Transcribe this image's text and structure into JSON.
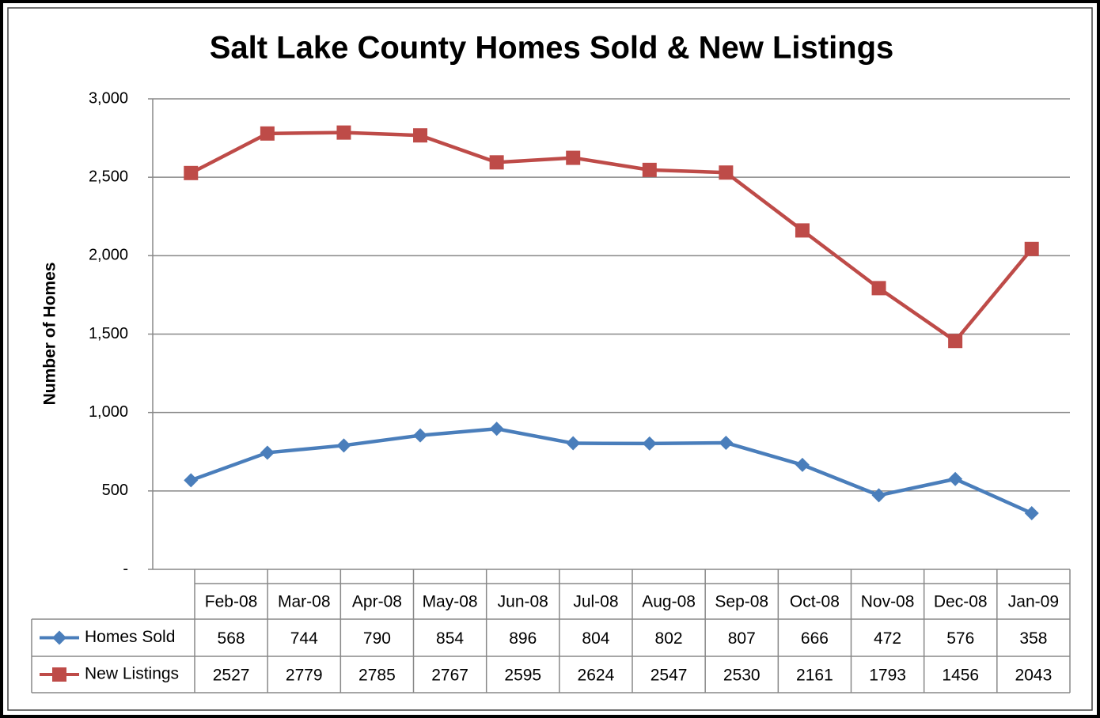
{
  "chart_data": {
    "type": "line",
    "title": "Salt Lake County Homes Sold & New Listings",
    "y_label": "Number of Homes",
    "categories": [
      "Feb-08",
      "Mar-08",
      "Apr-08",
      "May-08",
      "Jun-08",
      "Jul-08",
      "Aug-08",
      "Sep-08",
      "Oct-08",
      "Nov-08",
      "Dec-08",
      "Jan-09"
    ],
    "series": [
      {
        "name": "Homes Sold",
        "color": "#4a7ebb",
        "marker": "diamond",
        "values": [
          568,
          744,
          790,
          854,
          896,
          804,
          802,
          807,
          666,
          472,
          576,
          358
        ]
      },
      {
        "name": "New Listings",
        "color": "#be4b48",
        "marker": "square",
        "values": [
          2527,
          2779,
          2785,
          2767,
          2595,
          2624,
          2547,
          2530,
          2161,
          1793,
          1456,
          2043
        ]
      }
    ],
    "ylim": [
      0,
      3000
    ],
    "yticks": [
      {
        "value": 0,
        "label": "-"
      },
      500,
      {
        "value": 1000,
        "label": "1,000"
      },
      {
        "value": 1500,
        "label": "1,500"
      },
      {
        "value": 2000,
        "label": "2,000"
      },
      {
        "value": 2500,
        "label": "2,500"
      },
      {
        "value": 3000,
        "label": "3,000"
      }
    ],
    "grid": true,
    "data_table": true
  }
}
